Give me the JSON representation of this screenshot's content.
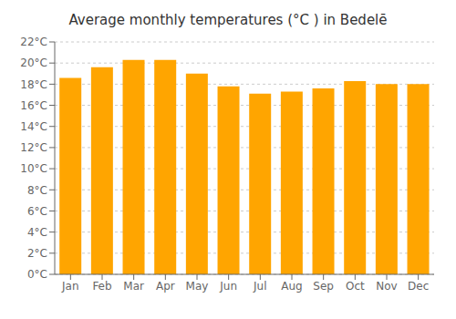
{
  "chart_data": {
    "type": "bar",
    "title": "Average monthly temperatures (°C ) in Bedelē",
    "categories": [
      "Jan",
      "Feb",
      "Mar",
      "Apr",
      "May",
      "Jun",
      "Jul",
      "Aug",
      "Sep",
      "Oct",
      "Nov",
      "Dec"
    ],
    "values": [
      18.6,
      19.6,
      20.3,
      20.3,
      19.0,
      17.8,
      17.1,
      17.3,
      17.6,
      18.3,
      18.0,
      18.0
    ],
    "color": "#FFA500",
    "ylim": [
      0,
      22
    ],
    "yticks": [
      {
        "value": 0,
        "label": "0°C"
      },
      {
        "value": 2,
        "label": "2°C"
      },
      {
        "value": 4,
        "label": "4°C"
      },
      {
        "value": 6,
        "label": "6°C"
      },
      {
        "value": 8,
        "label": "8°C"
      },
      {
        "value": 10,
        "label": "10°C"
      },
      {
        "value": 12,
        "label": "12°C"
      },
      {
        "value": 14,
        "label": "14°C"
      },
      {
        "value": 16,
        "label": "16°C"
      },
      {
        "value": 18,
        "label": "18°C"
      },
      {
        "value": 20,
        "label": "20°C"
      },
      {
        "value": 22,
        "label": "22°C"
      }
    ],
    "grid": true
  }
}
